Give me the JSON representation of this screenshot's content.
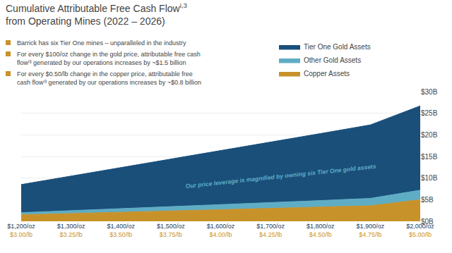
{
  "chart_data": {
    "type": "area",
    "stacked": true,
    "title": "Cumulative Attributable Free Cash Flow",
    "title_superscript": "i,3",
    "subtitle": "from Operating Mines (2022 – 2026)",
    "categories": [
      "$1,200/oz",
      "$1,300/oz",
      "$1,400/oz",
      "$1,500/oz",
      "$1,600/oz",
      "$1,700/oz",
      "$1,800/oz",
      "$1,900/oz",
      "$2,000/oz"
    ],
    "category_color": "#1a3d5c",
    "secondary_categories": [
      "$3.00/lb",
      "$3.25/lb",
      "$3.50/lb",
      "$3.75/lb",
      "$4.00/lb",
      "$4.25/lb",
      "$4.50/lb",
      "$4.75/lb",
      "$5.00/lb"
    ],
    "secondary_category_color": "#c8922a",
    "series": [
      {
        "name": "Copper Assets",
        "color": "#c8922a",
        "values": [
          1.5,
          1.8,
          2.1,
          2.4,
          2.7,
          3.0,
          3.3,
          3.6,
          5.0
        ]
      },
      {
        "name": "Other Gold Assets",
        "color": "#5fadc5",
        "values": [
          0.5,
          0.65,
          0.8,
          0.95,
          1.1,
          1.3,
          1.5,
          1.7,
          2.2
        ]
      },
      {
        "name": "Tier One Gold Assets",
        "color": "#1a4f7a",
        "values": [
          6.5,
          8.0,
          9.5,
          11.0,
          12.5,
          14.0,
          15.5,
          17.0,
          19.5
        ]
      }
    ],
    "ylim": [
      0,
      30
    ],
    "yticks": [
      {
        "value": 0,
        "label": "$0B"
      },
      {
        "value": 5,
        "label": "$5B"
      },
      {
        "value": 10,
        "label": "$10B"
      },
      {
        "value": 15,
        "label": "$15B"
      },
      {
        "value": 20,
        "label": "$20B"
      },
      {
        "value": 25,
        "label": "$25B"
      },
      {
        "value": 30,
        "label": "$30B"
      }
    ],
    "grid": true,
    "legend": "top right",
    "annotations": [
      {
        "text": "Our price leverage is magnified by owning six Tier One gold assets",
        "color": "#5fadc5"
      }
    ],
    "notes": [
      {
        "text": "Barrick has six Tier One mines – unparalleled in the industry",
        "color": "#c8922a"
      },
      {
        "text": "For every $100/oz change in the gold price, attributable free cash\nflowⁱ³ generated by our operations increases by ~$1.5 billion",
        "color": "#c8922a"
      },
      {
        "text": "For every $0.50/lb change in the copper price, attributable free\ncash flowⁱ³ generated by our operations increases by ~$0.8 billion",
        "color": "#c8922a"
      }
    ]
  }
}
